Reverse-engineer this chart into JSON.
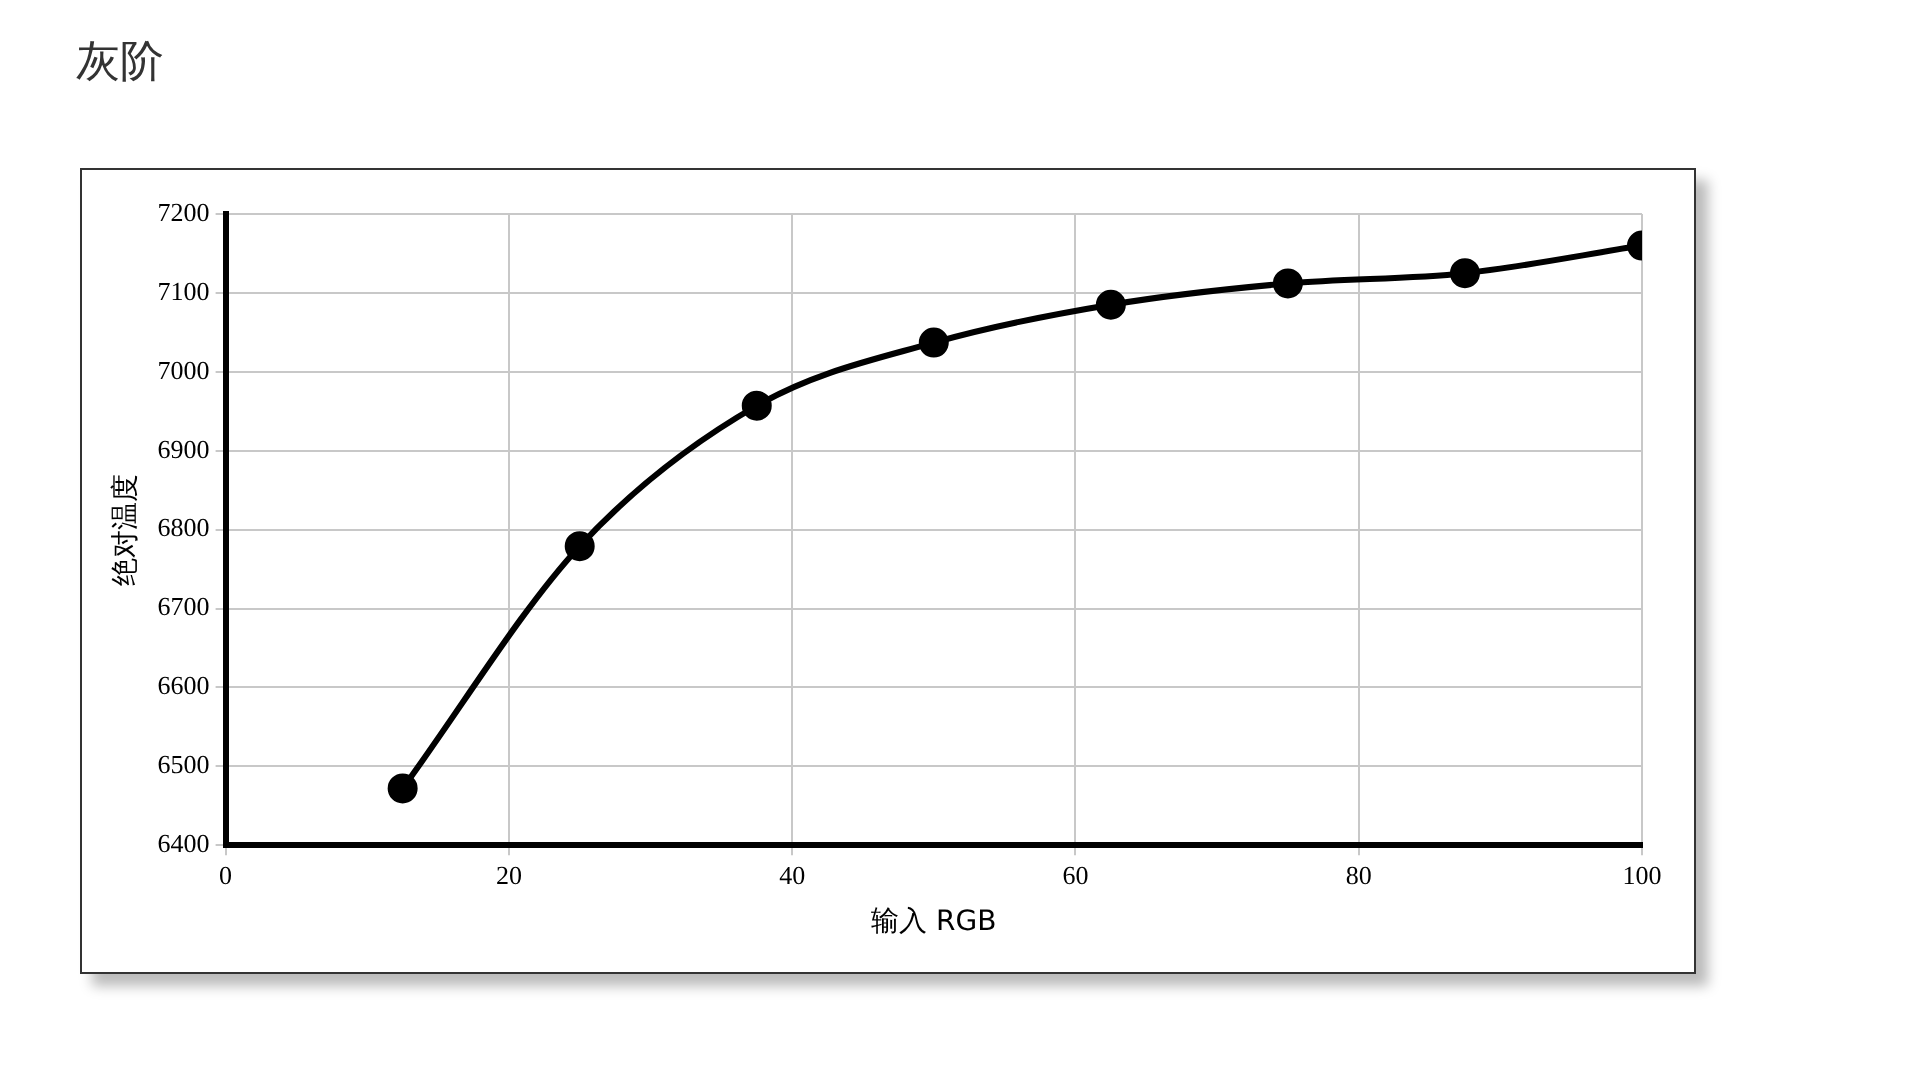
{
  "chart_data": {
    "type": "line",
    "title": "灰阶",
    "xlabel": "输入 RGB",
    "ylabel": "绝对温度",
    "x": [
      12.5,
      25,
      37.5,
      50,
      62.5,
      75,
      87.5,
      100
    ],
    "series": [
      {
        "color": "#000000",
        "values": [
          6472,
          6779,
          6957,
          7037,
          7085,
          7112,
          7125,
          7160
        ]
      }
    ],
    "xlim": [
      0,
      100
    ],
    "xticks": [
      0,
      20,
      40,
      60,
      80,
      100
    ],
    "ylim": [
      6400,
      7200
    ],
    "yticks": [
      6400,
      6500,
      6600,
      6700,
      6800,
      6900,
      7000,
      7100,
      7200
    ],
    "grid": true,
    "legend": false,
    "marker": "circle",
    "line_style": "solid"
  }
}
